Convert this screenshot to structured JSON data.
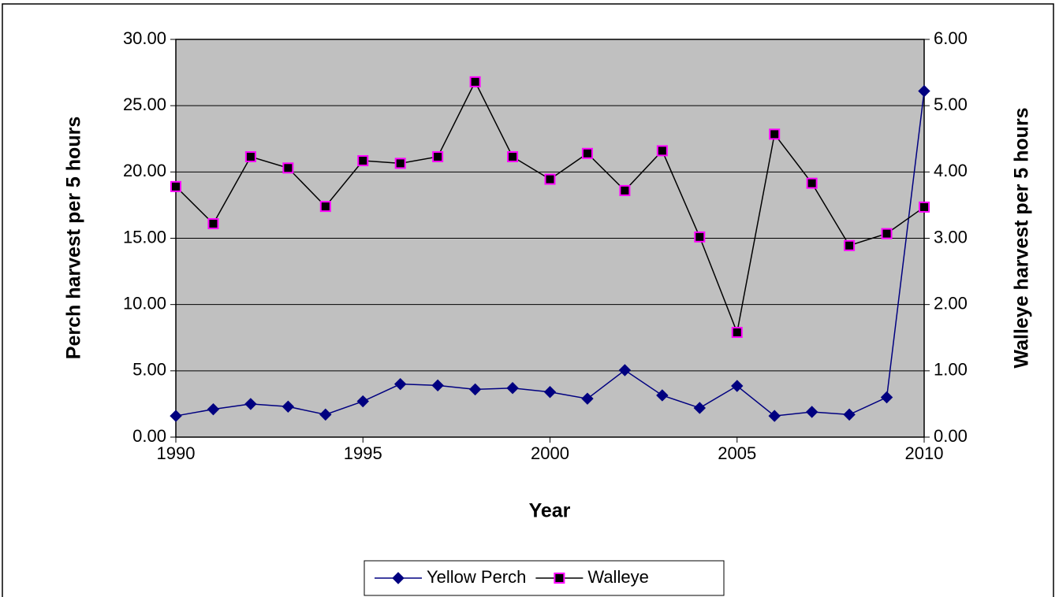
{
  "chart_data": {
    "type": "line",
    "x_label": "Year",
    "y_label": "Perch harvest per 5 hours",
    "y2_label": "Walleye harvest per 5 hours",
    "x": [
      1990,
      1991,
      1992,
      1993,
      1994,
      1995,
      1996,
      1997,
      1998,
      1999,
      2000,
      2001,
      2002,
      2003,
      2004,
      2005,
      2006,
      2007,
      2008,
      2009,
      2010
    ],
    "xlim": [
      1990,
      2010
    ],
    "xticks": [
      1990,
      1995,
      2000,
      2005,
      2010
    ],
    "ylim": [
      0,
      30
    ],
    "yticks": [
      {
        "value": 0,
        "label": "0.00"
      },
      {
        "value": 5,
        "label": "5.00"
      },
      {
        "value": 10,
        "label": "10.00"
      },
      {
        "value": 15,
        "label": "15.00"
      },
      {
        "value": 20,
        "label": "20.00"
      },
      {
        "value": 25,
        "label": "25.00"
      },
      {
        "value": 30,
        "label": "30.00"
      }
    ],
    "y2lim": [
      0,
      6
    ],
    "y2ticks": [
      {
        "value": 0,
        "label": "0.00"
      },
      {
        "value": 1,
        "label": "1.00"
      },
      {
        "value": 2,
        "label": "2.00"
      },
      {
        "value": 3,
        "label": "3.00"
      },
      {
        "value": 4,
        "label": "4.00"
      },
      {
        "value": 5,
        "label": "5.00"
      },
      {
        "value": 6,
        "label": "6.00"
      }
    ],
    "grid": true,
    "plot_background": "#c0c0c0",
    "legend": "bottom",
    "series": [
      {
        "name": "Yellow Perch",
        "color": "#000080",
        "marker": "diamond",
        "values": [
          1.6,
          2.1,
          2.5,
          2.3,
          1.7,
          2.7,
          4.0,
          3.9,
          3.6,
          3.7,
          3.4,
          2.9,
          5.05,
          3.15,
          2.2,
          3.86,
          1.6,
          1.9,
          1.7,
          3.0,
          26.1
        ]
      },
      {
        "name": "Walleye",
        "color": "#000000",
        "marker_edge": "#ff00ff",
        "marker": "square",
        "axis": "y2",
        "values": [
          3.78,
          3.22,
          4.23,
          4.06,
          3.48,
          4.17,
          4.13,
          4.23,
          5.36,
          4.23,
          3.89,
          4.28,
          3.72,
          4.32,
          3.02,
          1.58,
          4.57,
          3.83,
          2.89,
          3.07,
          3.47
        ]
      }
    ]
  }
}
